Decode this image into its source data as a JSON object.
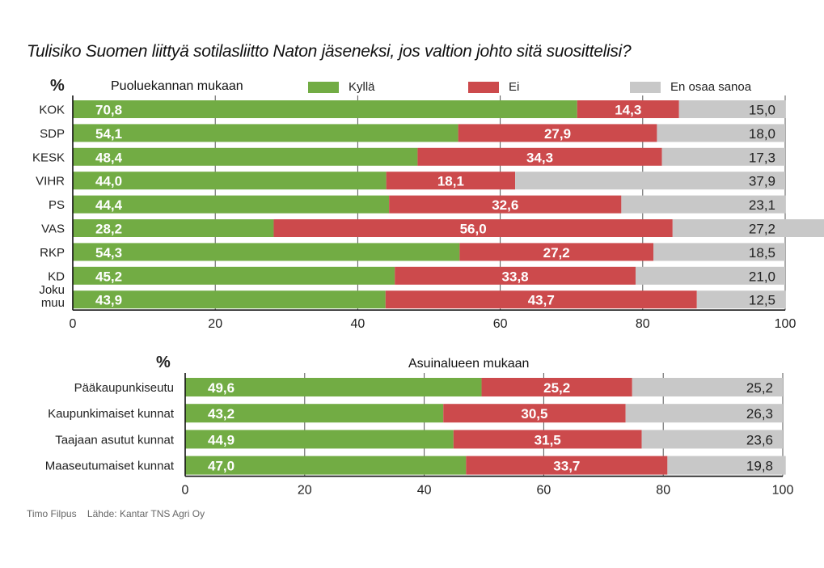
{
  "title": "Tulisiko Suomen liittyä sotilasliitto Naton jäseneksi, jos valtion johto sitä suosittelisi?",
  "legend": [
    {
      "label": "Kyllä",
      "color": "#72ac44"
    },
    {
      "label": "Ei",
      "color": "#cc4a4c"
    },
    {
      "label": "En osaa sanoa",
      "color": "#c8c8c8"
    }
  ],
  "footer": {
    "author": "Timo Filpus",
    "source": "Lähde: Kantar TNS Agri Oy"
  },
  "chart_data": [
    {
      "type": "bar",
      "orientation": "horizontal",
      "stacked": true,
      "title": "Puoluekannan mukaan",
      "unit_label": "%",
      "categories": [
        "KOK",
        "SDP",
        "KESK",
        "VIHR",
        "PS",
        "VAS",
        "RKP",
        "KD",
        "Joku muu"
      ],
      "series": [
        {
          "name": "Kyllä",
          "color": "#72ac44",
          "values": [
            70.8,
            54.1,
            48.4,
            44.0,
            44.4,
            28.2,
            54.3,
            45.2,
            43.9
          ]
        },
        {
          "name": "Ei",
          "color": "#cc4a4c",
          "values": [
            14.3,
            27.9,
            34.3,
            18.1,
            32.6,
            56.0,
            27.2,
            33.8,
            43.7
          ]
        },
        {
          "name": "En osaa sanoa",
          "color": "#c8c8c8",
          "values": [
            15.0,
            18.0,
            17.3,
            37.9,
            23.1,
            27.2,
            18.5,
            21.0,
            12.5
          ]
        }
      ],
      "value_labels": {
        "Kyllä": [
          "70,8",
          "54,1",
          "48,4",
          "44,0",
          "44,4",
          "28,2",
          "54,3",
          "45,2",
          "43,9"
        ],
        "Ei": [
          "14,3",
          "27,9",
          "34,3",
          "18,1",
          "32,6",
          "56,0",
          "27,2",
          "33,8",
          "43,7"
        ],
        "En osaa sanoa": [
          "15,0",
          "18,0",
          "17,3",
          "37,9",
          "23,1",
          "27,2",
          "18,5",
          "21,0",
          "12,5"
        ]
      },
      "xlim": [
        0,
        100
      ],
      "xticks": [
        0,
        20,
        40,
        60,
        80,
        100
      ],
      "xlabel": "",
      "ylabel": "",
      "grid": true,
      "legend": "top"
    },
    {
      "type": "bar",
      "orientation": "horizontal",
      "stacked": true,
      "title": "Asuinalueen mukaan",
      "unit_label": "%",
      "categories": [
        "Pääkaupunkiseutu",
        "Kaupunkimaiset kunnat",
        "Taajaan asutut kunnat",
        "Maaseutumaiset kunnat"
      ],
      "series": [
        {
          "name": "Kyllä",
          "color": "#72ac44",
          "values": [
            49.6,
            43.2,
            44.9,
            47.0
          ]
        },
        {
          "name": "Ei",
          "color": "#cc4a4c",
          "values": [
            25.2,
            30.5,
            31.5,
            33.7
          ]
        },
        {
          "name": "En osaa sanoa",
          "color": "#c8c8c8",
          "values": [
            25.2,
            26.3,
            23.6,
            19.8
          ]
        }
      ],
      "value_labels": {
        "Kyllä": [
          "49,6",
          "43,2",
          "44,9",
          "47,0"
        ],
        "Ei": [
          "25,2",
          "30,5",
          "31,5",
          "33,7"
        ],
        "En osaa sanoa": [
          "25,2",
          "26,3",
          "23,6",
          "19,8"
        ]
      },
      "xlim": [
        0,
        100
      ],
      "xticks": [
        0,
        20,
        40,
        60,
        80,
        100
      ],
      "xlabel": "",
      "ylabel": "",
      "grid": true,
      "legend": "none"
    }
  ]
}
